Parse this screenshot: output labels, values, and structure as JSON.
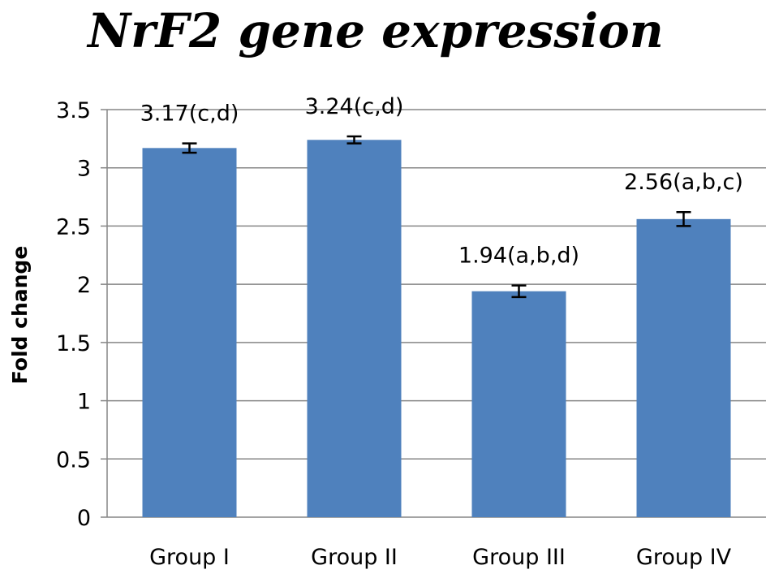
{
  "chart_data": {
    "type": "bar",
    "title": "NrF2 gene expression",
    "ylabel": "Fold change",
    "xlabel": "",
    "categories": [
      "Group I",
      "Group II",
      "Group III",
      "Group IV"
    ],
    "values": [
      3.17,
      3.24,
      1.94,
      2.56
    ],
    "errors": [
      0.04,
      0.03,
      0.05,
      0.06
    ],
    "data_labels": [
      "3.17(c,d)",
      "3.24(c,d)",
      "1.94(a,b,d)",
      "2.56(a,b,c)"
    ],
    "ylim": [
      0,
      3.5
    ],
    "yticks": [
      "0",
      "0.5",
      "1",
      "1.5",
      "2",
      "2.5",
      "3",
      "3.5"
    ],
    "grid": true,
    "legend": "none",
    "colors": {
      "bar": "#4f81bd",
      "grid": "#868686",
      "axis": "#868686",
      "error_bar": "#000000"
    }
  }
}
